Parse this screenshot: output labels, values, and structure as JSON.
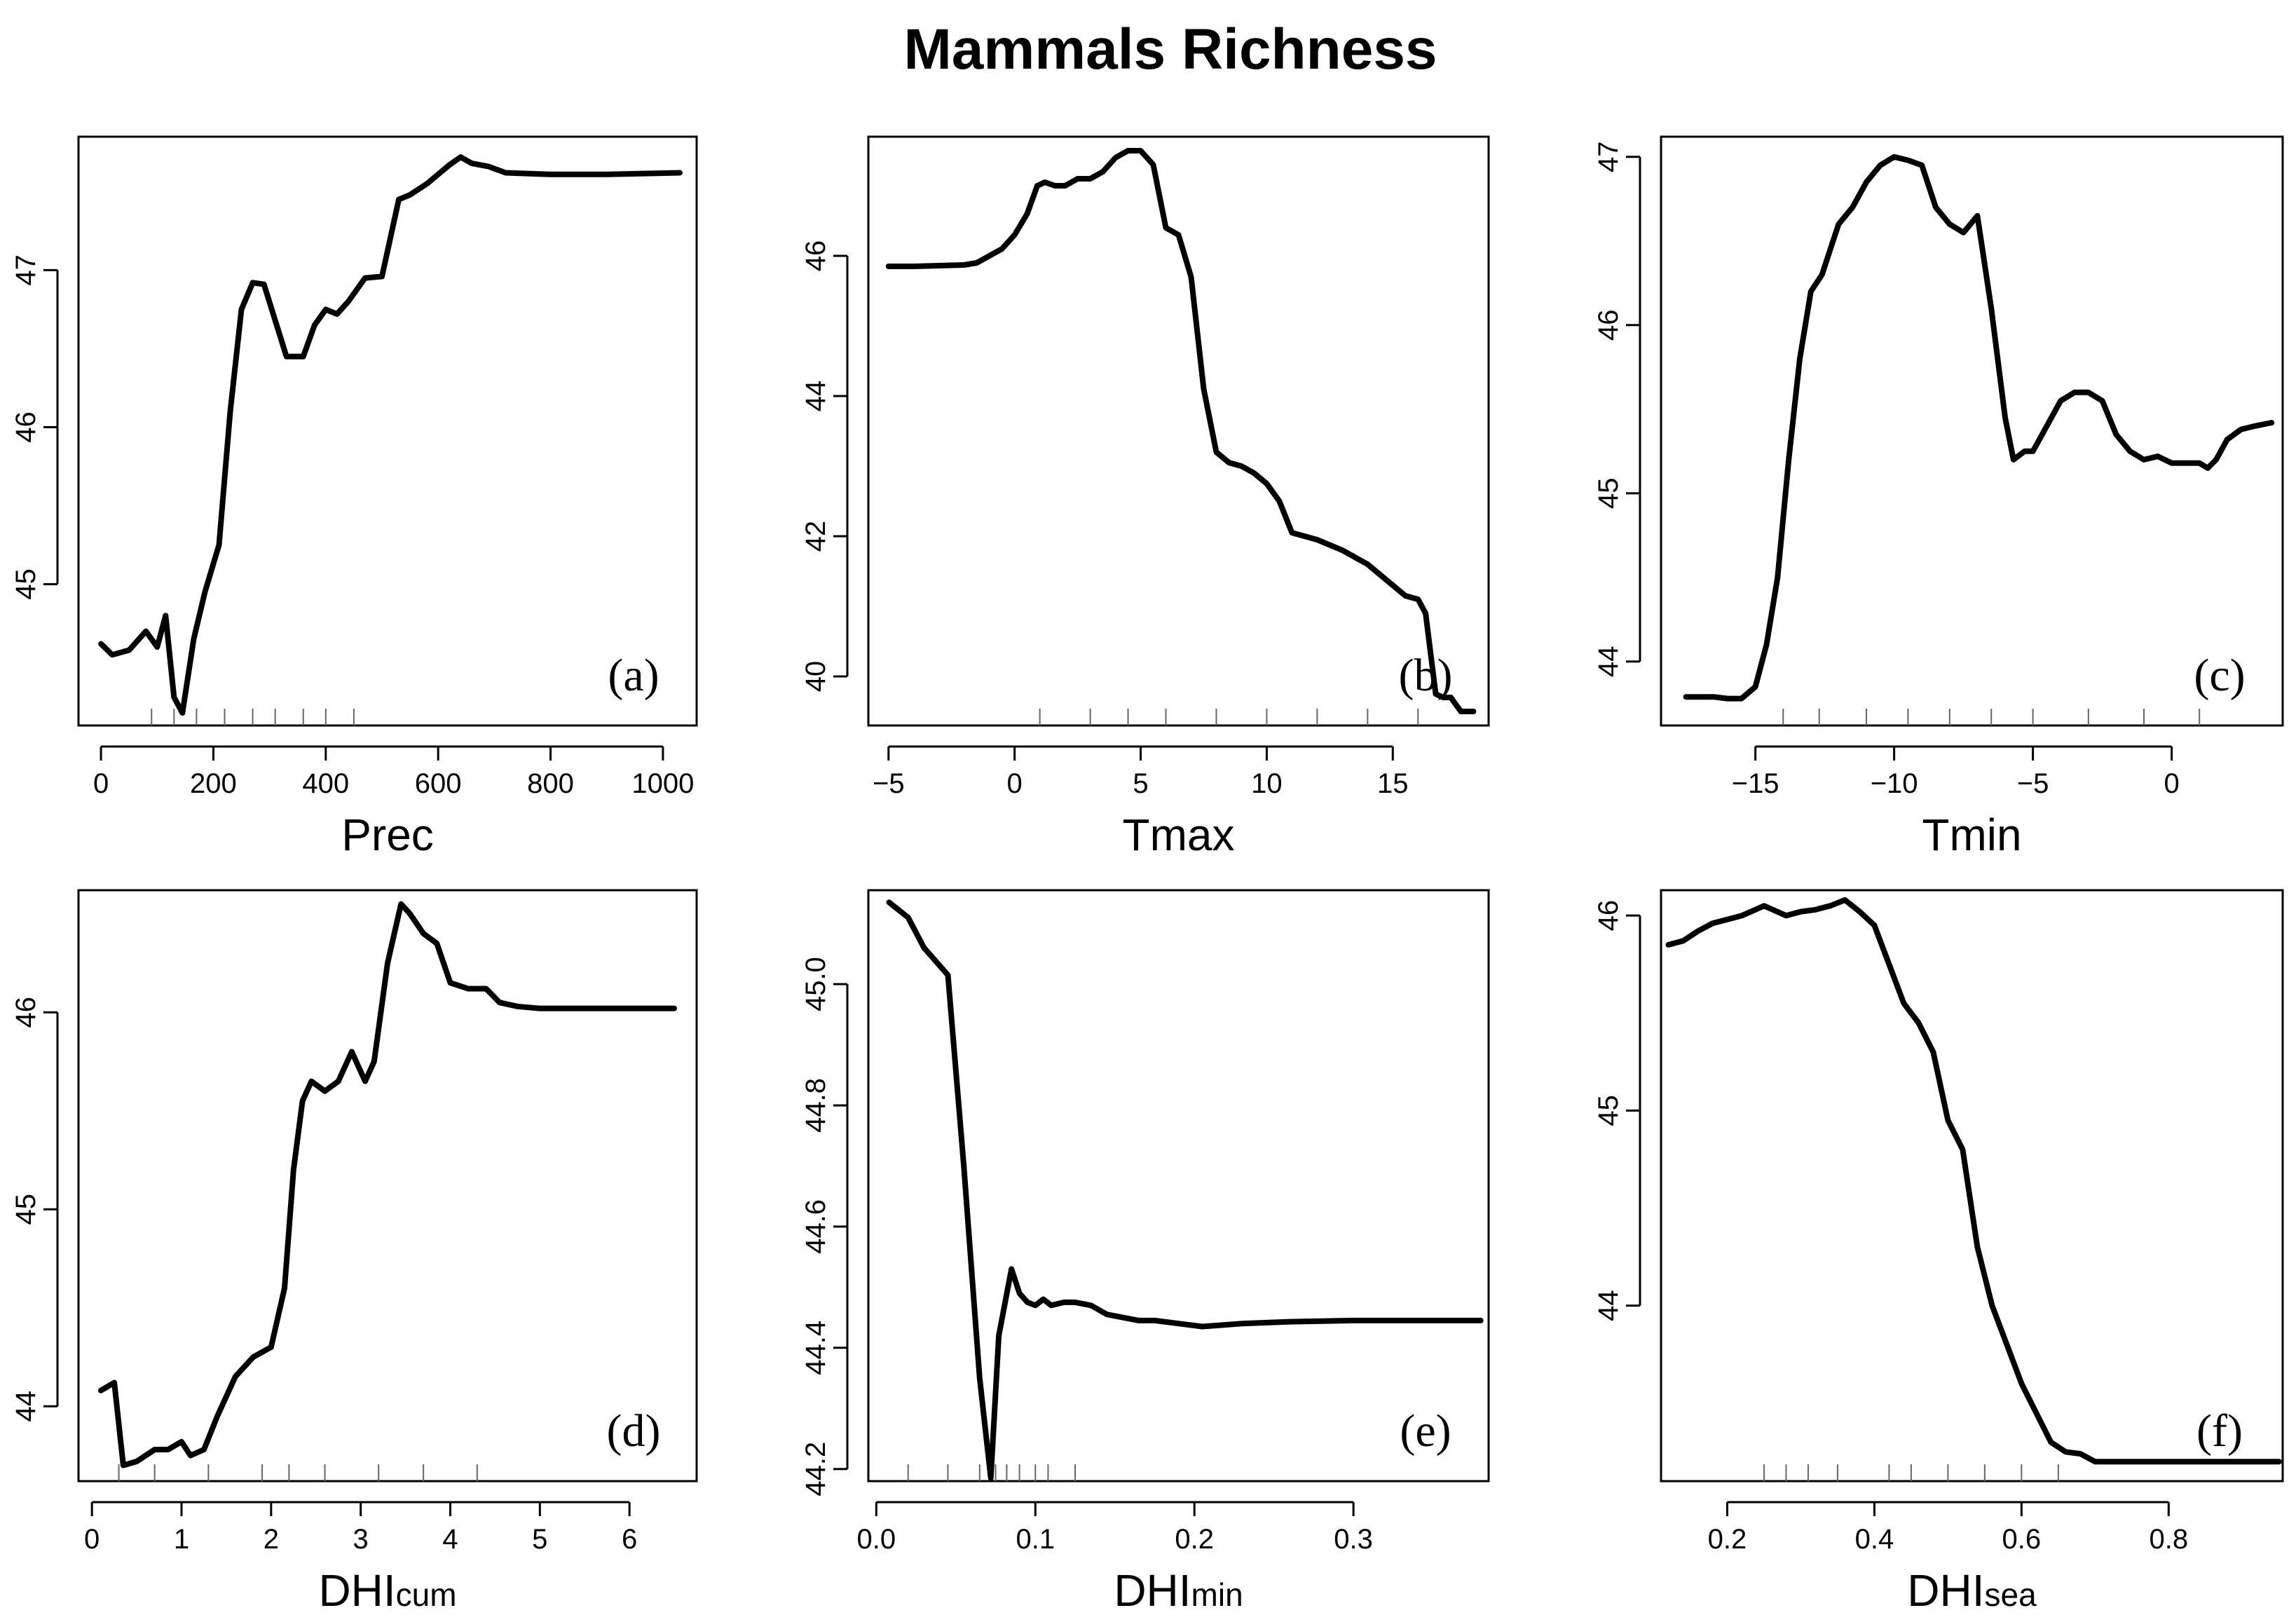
{
  "title": "Mammals Richness",
  "chart_data": [
    {
      "type": "line",
      "panel": "(a)",
      "xlabel_main": "Prec",
      "xlabel_sub": "",
      "xlim": [
        -40,
        1060
      ],
      "ylim": [
        44.1,
        47.85
      ],
      "xticks": [
        0,
        200,
        400,
        600,
        800,
        1000
      ],
      "yticks": [
        45,
        46,
        47
      ],
      "rug": [
        90,
        130,
        170,
        220,
        270,
        310,
        360,
        400,
        450
      ],
      "x": [
        0,
        20,
        50,
        80,
        100,
        115,
        130,
        145,
        165,
        185,
        210,
        230,
        250,
        270,
        290,
        330,
        360,
        380,
        400,
        420,
        440,
        470,
        500,
        530,
        550,
        580,
        620,
        640,
        660,
        690,
        720,
        800,
        900,
        1030
      ],
      "y": [
        44.62,
        44.55,
        44.58,
        44.7,
        44.6,
        44.8,
        44.28,
        44.18,
        44.65,
        44.95,
        45.25,
        46.1,
        46.75,
        46.92,
        46.91,
        46.45,
        46.45,
        46.65,
        46.75,
        46.72,
        46.8,
        46.95,
        46.96,
        47.45,
        47.48,
        47.55,
        47.67,
        47.72,
        47.68,
        47.66,
        47.62,
        47.61,
        47.61,
        47.62
      ]
    },
    {
      "type": "line",
      "panel": "(b)",
      "xlabel_main": "Tmax",
      "xlabel_sub": "",
      "xlim": [
        -5.8,
        18.8
      ],
      "ylim": [
        39.3,
        47.7
      ],
      "xticks": [
        -5,
        0,
        5,
        10,
        15
      ],
      "yticks": [
        40,
        42,
        44,
        46
      ],
      "rug": [
        1,
        3,
        4.5,
        6,
        8,
        10,
        12,
        14,
        16
      ],
      "x": [
        -5,
        -4,
        -3,
        -2,
        -1.5,
        -1,
        -0.5,
        0,
        0.5,
        0.9,
        1.2,
        1.6,
        2,
        2.5,
        3,
        3.5,
        4,
        4.5,
        5,
        5.5,
        6,
        6.5,
        7,
        7.5,
        8,
        8.5,
        9,
        9.5,
        10,
        10.5,
        11,
        12,
        13,
        14,
        15,
        15.5,
        16,
        16.3,
        16.7,
        17,
        17.3,
        17.7,
        18.2
      ],
      "y": [
        45.85,
        45.85,
        45.86,
        45.87,
        45.9,
        46.0,
        46.1,
        46.3,
        46.6,
        47.0,
        47.05,
        47.0,
        47.0,
        47.1,
        47.1,
        47.2,
        47.4,
        47.5,
        47.5,
        47.3,
        46.4,
        46.3,
        45.7,
        44.1,
        43.2,
        43.05,
        43.0,
        42.9,
        42.75,
        42.5,
        42.05,
        41.95,
        41.8,
        41.6,
        41.3,
        41.15,
        41.1,
        40.9,
        39.75,
        39.7,
        39.7,
        39.5,
        39.5
      ]
    },
    {
      "type": "line",
      "panel": "(c)",
      "xlabel_main": "Tmin",
      "xlabel_sub": "",
      "xlim": [
        -18.4,
        4.0
      ],
      "ylim": [
        43.62,
        47.12
      ],
      "xticks": [
        -15,
        -10,
        -5,
        0
      ],
      "yticks": [
        44,
        45,
        46,
        47
      ],
      "rug": [
        -14,
        -12.7,
        -11,
        -9.5,
        -8,
        -6.5,
        -5,
        -3,
        -1,
        1
      ],
      "x": [
        -17.5,
        -16.5,
        -16,
        -15.5,
        -15,
        -14.6,
        -14.2,
        -13.8,
        -13.4,
        -13,
        -12.6,
        -12.3,
        -12,
        -11.5,
        -11,
        -10.5,
        -10,
        -9.5,
        -9,
        -8.5,
        -8,
        -7.5,
        -7,
        -6.5,
        -6,
        -5.7,
        -5.3,
        -5,
        -4.5,
        -4,
        -3.5,
        -3,
        -2.5,
        -2,
        -1.5,
        -1,
        -0.5,
        0,
        0.5,
        1,
        1.3,
        1.6,
        2,
        2.5,
        3,
        3.6
      ],
      "y": [
        43.79,
        43.79,
        43.78,
        43.78,
        43.85,
        44.1,
        44.5,
        45.2,
        45.8,
        46.2,
        46.3,
        46.45,
        46.6,
        46.7,
        46.85,
        46.95,
        47.0,
        46.98,
        46.95,
        46.7,
        46.6,
        46.55,
        46.65,
        46.1,
        45.45,
        45.2,
        45.25,
        45.25,
        45.4,
        45.55,
        45.6,
        45.6,
        45.55,
        45.35,
        45.25,
        45.2,
        45.22,
        45.18,
        45.18,
        45.18,
        45.15,
        45.2,
        45.32,
        45.38,
        45.4,
        45.42
      ]
    },
    {
      "type": "line",
      "panel": "(d)",
      "xlabel_main": "DHI",
      "xlabel_sub": "cum",
      "xlim": [
        -0.15,
        6.75
      ],
      "ylim": [
        43.62,
        46.62
      ],
      "xticks": [
        0,
        1,
        2,
        3,
        4,
        5,
        6
      ],
      "yticks": [
        44,
        45,
        46
      ],
      "rug": [
        0.3,
        0.7,
        1.3,
        1.9,
        2.2,
        2.6,
        3.2,
        3.7,
        4.3
      ],
      "x": [
        0.1,
        0.25,
        0.35,
        0.5,
        0.7,
        0.85,
        1.0,
        1.1,
        1.25,
        1.4,
        1.6,
        1.8,
        2.0,
        2.15,
        2.25,
        2.35,
        2.45,
        2.6,
        2.75,
        2.9,
        3.05,
        3.15,
        3.3,
        3.45,
        3.55,
        3.7,
        3.85,
        4.0,
        4.2,
        4.4,
        4.55,
        4.75,
        5.0,
        5.5,
        6.0,
        6.5
      ],
      "y": [
        44.08,
        44.12,
        43.7,
        43.72,
        43.78,
        43.78,
        43.82,
        43.75,
        43.78,
        43.95,
        44.15,
        44.25,
        44.3,
        44.6,
        45.2,
        45.55,
        45.65,
        45.6,
        45.65,
        45.8,
        45.65,
        45.75,
        46.25,
        46.55,
        46.5,
        46.4,
        46.35,
        46.15,
        46.12,
        46.12,
        46.05,
        46.03,
        46.02,
        46.02,
        46.02,
        46.02
      ]
    },
    {
      "type": "line",
      "panel": "(e)",
      "xlabel_main": "DHI",
      "xlabel_sub": "min",
      "xlim": [
        -0.005,
        0.385
      ],
      "ylim": [
        44.18,
        45.155
      ],
      "xticks": [
        0.0,
        0.1,
        0.2,
        0.3
      ],
      "tick_labels": [
        "0.0",
        "0.1",
        "0.2",
        "0.3"
      ],
      "yticks": [
        44.2,
        44.4,
        44.6,
        44.8,
        45.0
      ],
      "ytick_labels": [
        "44.2",
        "44.4",
        "44.6",
        "44.8",
        "45.0"
      ],
      "rug": [
        0.02,
        0.045,
        0.065,
        0.075,
        0.082,
        0.09,
        0.1,
        0.108,
        0.125
      ],
      "x": [
        0.008,
        0.02,
        0.03,
        0.045,
        0.055,
        0.065,
        0.072,
        0.077,
        0.085,
        0.09,
        0.095,
        0.1,
        0.105,
        0.11,
        0.118,
        0.125,
        0.135,
        0.145,
        0.155,
        0.165,
        0.175,
        0.19,
        0.205,
        0.23,
        0.26,
        0.3,
        0.34,
        0.38
      ],
      "y": [
        45.135,
        45.11,
        45.06,
        45.015,
        44.7,
        44.35,
        44.185,
        44.42,
        44.53,
        44.49,
        44.475,
        44.47,
        44.48,
        44.47,
        44.475,
        44.475,
        44.47,
        44.455,
        44.45,
        44.445,
        44.445,
        44.44,
        44.435,
        44.44,
        44.443,
        44.445,
        44.445,
        44.445
      ]
    },
    {
      "type": "line",
      "panel": "(f)",
      "xlabel_main": "DHI",
      "xlabel_sub": "sea",
      "xlim": [
        0.11,
        0.955
      ],
      "ylim": [
        43.1,
        46.13
      ],
      "xticks": [
        0.2,
        0.4,
        0.6,
        0.8
      ],
      "tick_labels": [
        "0.2",
        "0.4",
        "0.6",
        "0.8"
      ],
      "yticks": [
        44,
        45,
        46
      ],
      "rug": [
        0.25,
        0.28,
        0.31,
        0.35,
        0.42,
        0.45,
        0.5,
        0.55,
        0.6,
        0.65
      ],
      "x": [
        0.12,
        0.14,
        0.16,
        0.18,
        0.2,
        0.22,
        0.25,
        0.28,
        0.3,
        0.32,
        0.34,
        0.36,
        0.38,
        0.4,
        0.42,
        0.44,
        0.46,
        0.48,
        0.5,
        0.52,
        0.54,
        0.56,
        0.58,
        0.6,
        0.62,
        0.64,
        0.66,
        0.68,
        0.7,
        0.72,
        0.75,
        0.8,
        0.85,
        0.9,
        0.95
      ],
      "y": [
        45.85,
        45.87,
        45.92,
        45.96,
        45.98,
        46.0,
        46.05,
        46.0,
        46.02,
        46.03,
        46.05,
        46.08,
        46.02,
        45.95,
        45.75,
        45.55,
        45.45,
        45.3,
        44.95,
        44.8,
        44.3,
        44.0,
        43.8,
        43.6,
        43.45,
        43.3,
        43.25,
        43.24,
        43.2,
        43.2,
        43.2,
        43.2,
        43.2,
        43.2,
        43.2
      ]
    }
  ]
}
